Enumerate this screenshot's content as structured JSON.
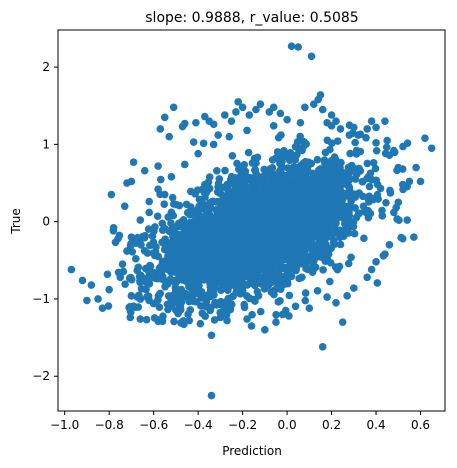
{
  "chart_data": {
    "type": "scatter",
    "title": "slope: 0.9888, r_value: 0.5085",
    "xlabel": "Prediction",
    "ylabel": "True",
    "xlim": [
      -1.03,
      0.71
    ],
    "ylim": [
      -2.45,
      2.48
    ],
    "xticks": [
      -1.0,
      -0.8,
      -0.6,
      -0.4,
      -0.2,
      0.0,
      0.2,
      0.4,
      0.6
    ],
    "xtick_labels": [
      "−1.0",
      "−0.8",
      "−0.6",
      "−0.4",
      "−0.2",
      "0.0",
      "0.2",
      "0.4",
      "0.6"
    ],
    "yticks": [
      -2,
      -1,
      0,
      1,
      2
    ],
    "ytick_labels": [
      "−2",
      "−1",
      "0",
      "1",
      "2"
    ],
    "grid": false,
    "marker_color": "#1f77b4",
    "points": [
      [
        -0.97,
        -0.62
      ],
      [
        -0.92,
        -0.76
      ],
      [
        -0.9,
        -1.02
      ],
      [
        -0.88,
        -0.82
      ],
      [
        -0.85,
        -1.0
      ],
      [
        -0.83,
        -1.12
      ],
      [
        -0.8,
        -0.88
      ],
      [
        -0.79,
        0.35
      ],
      [
        -0.78,
        -0.08
      ],
      [
        -0.76,
        -0.22
      ],
      [
        -0.73,
        0.2
      ],
      [
        -0.72,
        0.5
      ],
      [
        -0.7,
        0.52
      ],
      [
        -0.69,
        0.77
      ],
      [
        -0.68,
        -0.48
      ],
      [
        -0.66,
        -1.26
      ],
      [
        -0.64,
        0.66
      ],
      [
        -0.62,
        0.12
      ],
      [
        -0.6,
        -1.06
      ],
      [
        -0.58,
        0.72
      ],
      [
        -0.57,
        1.2
      ],
      [
        -0.56,
        -1.29
      ],
      [
        -0.55,
        1.35
      ],
      [
        -0.53,
        1.1
      ],
      [
        -0.52,
        -1.08
      ],
      [
        -0.51,
        1.48
      ],
      [
        -0.49,
        -1.19
      ],
      [
        -0.47,
        1.23
      ],
      [
        -0.46,
        1.27
      ],
      [
        -0.44,
        -1.28
      ],
      [
        -0.42,
        1.03
      ],
      [
        -0.41,
        1.28
      ],
      [
        -0.39,
        -1.32
      ],
      [
        -0.37,
        1.36
      ],
      [
        -0.35,
        1.3
      ],
      [
        -0.34,
        -1.47
      ],
      [
        -0.33,
        1.26
      ],
      [
        -0.34,
        -2.25
      ],
      [
        -0.31,
        1.12
      ],
      [
        -0.28,
        1.38
      ],
      [
        -0.27,
        -1.28
      ],
      [
        -0.25,
        1.3
      ],
      [
        -0.23,
        1.42
      ],
      [
        -0.22,
        1.55
      ],
      [
        -0.2,
        1.48
      ],
      [
        -0.17,
        1.38
      ],
      [
        -0.16,
        -1.35
      ],
      [
        -0.14,
        1.45
      ],
      [
        -0.12,
        1.52
      ],
      [
        -0.1,
        -1.4
      ],
      [
        -0.08,
        1.42
      ],
      [
        -0.06,
        1.48
      ],
      [
        -0.05,
        -1.3
      ],
      [
        -0.03,
        1.4
      ],
      [
        0.0,
        1.32
      ],
      [
        0.02,
        2.27
      ],
      [
        0.05,
        2.26
      ],
      [
        0.11,
        2.14
      ],
      [
        0.08,
        1.48
      ],
      [
        0.12,
        1.52
      ],
      [
        0.14,
        1.58
      ],
      [
        0.15,
        1.64
      ],
      [
        0.16,
        1.45
      ],
      [
        0.16,
        -1.62
      ],
      [
        0.18,
        1.28
      ],
      [
        0.2,
        1.38
      ],
      [
        0.22,
        1.3
      ],
      [
        0.24,
        1.2
      ],
      [
        0.25,
        -1.3
      ],
      [
        0.28,
        1.12
      ],
      [
        0.3,
        1.22
      ],
      [
        0.33,
        1.13
      ],
      [
        0.36,
        1.2
      ],
      [
        0.38,
        1.3
      ],
      [
        0.4,
        1.22
      ],
      [
        0.44,
        1.3
      ],
      [
        0.45,
        1.05
      ],
      [
        0.48,
        0.92
      ],
      [
        0.5,
        0.68
      ],
      [
        0.52,
        0.68
      ],
      [
        0.55,
        0.52
      ],
      [
        0.58,
        0.7
      ],
      [
        0.6,
        0.52
      ],
      [
        0.62,
        1.08
      ],
      [
        0.65,
        0.95
      ],
      [
        0.5,
        0.25
      ],
      [
        0.48,
        0.12
      ],
      [
        0.54,
        0.02
      ],
      [
        0.52,
        -0.22
      ],
      [
        0.57,
        -0.2
      ],
      [
        0.46,
        -0.3
      ],
      [
        0.44,
        -0.42
      ],
      [
        0.4,
        -0.52
      ],
      [
        0.38,
        -0.62
      ],
      [
        0.36,
        -0.72
      ],
      [
        0.3,
        -0.86
      ],
      [
        0.27,
        -0.96
      ],
      [
        0.22,
        -1.05
      ],
      [
        0.1,
        -1.12
      ],
      [
        -0.02,
        -1.2
      ],
      [
        -0.18,
        -1.26
      ],
      [
        -0.3,
        -1.24
      ],
      [
        -0.48,
        -1.1
      ],
      [
        -0.62,
        -1.02
      ],
      [
        -0.7,
        -0.96
      ],
      [
        -0.75,
        -0.72
      ],
      [
        -0.74,
        -0.55
      ],
      [
        -0.72,
        -0.38
      ],
      [
        -0.7,
        -0.2
      ],
      [
        -0.66,
        0.02
      ],
      [
        -0.62,
        0.26
      ],
      [
        -0.58,
        0.42
      ],
      [
        -0.52,
        0.58
      ],
      [
        -0.46,
        0.74
      ],
      [
        -0.4,
        0.88
      ],
      [
        -0.33,
        1.0
      ],
      [
        -0.26,
        1.1
      ],
      [
        -0.18,
        1.18
      ],
      [
        -0.06,
        1.24
      ],
      [
        0.06,
        1.28
      ],
      [
        0.2,
        1.24
      ],
      [
        0.32,
        1.12
      ],
      [
        0.4,
        1.02
      ],
      [
        0.46,
        0.86
      ],
      [
        0.5,
        0.7
      ],
      [
        0.52,
        0.48
      ]
    ],
    "cloud": {
      "n": 3200,
      "x_mean": -0.12,
      "x_std": 0.22,
      "y_mean": -0.12,
      "slope": 0.95,
      "y_std": 0.38,
      "x_range": [
        -0.82,
        0.55
      ],
      "y_range": [
        -1.35,
        1.4
      ]
    }
  }
}
